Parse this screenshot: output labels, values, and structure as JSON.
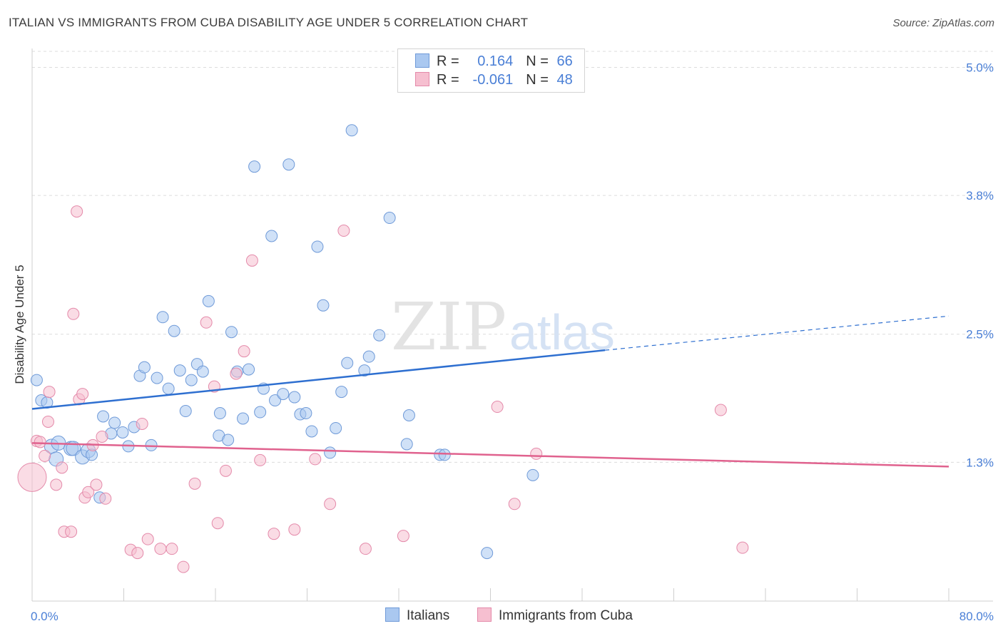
{
  "header": {
    "title": "ITALIAN VS IMMIGRANTS FROM CUBA DISABILITY AGE UNDER 5 CORRELATION CHART",
    "source": "Source: ZipAtlas.com"
  },
  "legend": {
    "rows": [
      {
        "r_label": "R =",
        "r_value": "0.164",
        "n_label": "N =",
        "n_value": "66"
      },
      {
        "r_label": "R =",
        "r_value": "-0.061",
        "n_label": "N =",
        "n_value": "48"
      }
    ]
  },
  "bottom_legend": [
    "Italians",
    "Immigrants from Cuba"
  ],
  "watermark": {
    "zip": "ZIP",
    "atlas": "atlas"
  },
  "colors": {
    "italians_fill": "#aac8f0",
    "italians_stroke": "#6f9ad8",
    "italians_line": "#2e6fd0",
    "cuba_fill": "#f6bfd0",
    "cuba_stroke": "#e48aaa",
    "cuba_line": "#e0628e",
    "tick_label": "#4a7fd6",
    "grid": "#dcdcdc"
  },
  "chart_data": {
    "type": "scatter",
    "title": "ITALIAN VS IMMIGRANTS FROM CUBA DISABILITY AGE UNDER 5 CORRELATION CHART",
    "xlabel": "",
    "ylabel": "Disability Age Under 5",
    "xlim": [
      0,
      80
    ],
    "ylim": [
      0,
      5.15
    ],
    "x_tick_labels": [
      "0.0%",
      "80.0%"
    ],
    "y_ticks": [
      1.3,
      2.5,
      3.8,
      5.0
    ],
    "y_tick_labels": [
      "1.3%",
      "2.5%",
      "3.8%",
      "5.0%"
    ],
    "grid": true,
    "legend_placement": "top-center",
    "series": [
      {
        "name": "Italians",
        "r": 0.164,
        "n": 66,
        "trend": {
          "x0": 0,
          "y0": 1.8,
          "x1": 50,
          "y1": 2.35,
          "dash_to_x": 80,
          "dash_to_y": 2.67
        },
        "points": [
          [
            0.4,
            2.07
          ],
          [
            0.8,
            1.88
          ],
          [
            1.3,
            1.86
          ],
          [
            1.7,
            1.45
          ],
          [
            2.1,
            1.33
          ],
          [
            2.3,
            1.48
          ],
          [
            3.4,
            1.43
          ],
          [
            3.6,
            1.43
          ],
          [
            4.4,
            1.35
          ],
          [
            4.9,
            1.41
          ],
          [
            5.2,
            1.37
          ],
          [
            5.9,
            0.97
          ],
          [
            6.2,
            1.73
          ],
          [
            6.9,
            1.57
          ],
          [
            7.2,
            1.67
          ],
          [
            7.9,
            1.58
          ],
          [
            8.4,
            1.45
          ],
          [
            8.9,
            1.63
          ],
          [
            9.4,
            2.11
          ],
          [
            9.8,
            2.19
          ],
          [
            10.4,
            1.46
          ],
          [
            10.9,
            2.09
          ],
          [
            11.4,
            2.66
          ],
          [
            11.9,
            1.99
          ],
          [
            12.4,
            2.53
          ],
          [
            12.9,
            2.16
          ],
          [
            13.4,
            1.78
          ],
          [
            13.9,
            2.07
          ],
          [
            14.4,
            2.22
          ],
          [
            14.9,
            2.15
          ],
          [
            15.4,
            2.81
          ],
          [
            16.3,
            1.55
          ],
          [
            16.4,
            1.76
          ],
          [
            17.1,
            1.51
          ],
          [
            17.4,
            2.52
          ],
          [
            17.9,
            2.15
          ],
          [
            18.4,
            1.71
          ],
          [
            18.9,
            2.17
          ],
          [
            19.4,
            4.07
          ],
          [
            19.9,
            1.77
          ],
          [
            20.2,
            1.99
          ],
          [
            20.9,
            3.42
          ],
          [
            21.2,
            1.88
          ],
          [
            21.9,
            1.94
          ],
          [
            22.4,
            4.09
          ],
          [
            22.9,
            1.91
          ],
          [
            23.4,
            1.75
          ],
          [
            23.9,
            1.76
          ],
          [
            24.4,
            1.59
          ],
          [
            24.9,
            3.32
          ],
          [
            25.4,
            2.77
          ],
          [
            26.0,
            1.39
          ],
          [
            26.5,
            1.62
          ],
          [
            27.0,
            1.96
          ],
          [
            27.5,
            2.23
          ],
          [
            27.9,
            4.41
          ],
          [
            29.0,
            2.16
          ],
          [
            29.4,
            2.29
          ],
          [
            30.3,
            2.49
          ],
          [
            31.2,
            3.59
          ],
          [
            32.7,
            1.47
          ],
          [
            32.9,
            1.74
          ],
          [
            35.6,
            1.37
          ],
          [
            36.0,
            1.37
          ],
          [
            39.7,
            0.45
          ],
          [
            43.7,
            1.18
          ]
        ]
      },
      {
        "name": "Immigrants from Cuba",
        "r": -0.061,
        "n": 48,
        "trend": {
          "x0": 0,
          "y0": 1.48,
          "x1": 80,
          "y1": 1.26
        },
        "points": [
          [
            0.0,
            1.16
          ],
          [
            0.4,
            1.5
          ],
          [
            0.7,
            1.49
          ],
          [
            1.1,
            1.36
          ],
          [
            1.4,
            1.68
          ],
          [
            1.5,
            1.96
          ],
          [
            2.1,
            1.09
          ],
          [
            2.6,
            1.25
          ],
          [
            2.8,
            0.65
          ],
          [
            3.4,
            0.65
          ],
          [
            3.6,
            2.69
          ],
          [
            3.9,
            3.65
          ],
          [
            4.1,
            1.89
          ],
          [
            4.4,
            1.94
          ],
          [
            4.6,
            0.97
          ],
          [
            4.9,
            1.02
          ],
          [
            5.3,
            1.46
          ],
          [
            5.6,
            1.09
          ],
          [
            6.1,
            1.54
          ],
          [
            6.4,
            0.96
          ],
          [
            8.6,
            0.48
          ],
          [
            9.2,
            0.45
          ],
          [
            9.6,
            1.66
          ],
          [
            10.1,
            0.58
          ],
          [
            11.2,
            0.49
          ],
          [
            12.2,
            0.49
          ],
          [
            13.2,
            0.32
          ],
          [
            14.2,
            1.1
          ],
          [
            15.2,
            2.61
          ],
          [
            15.9,
            2.01
          ],
          [
            16.2,
            0.73
          ],
          [
            16.9,
            1.22
          ],
          [
            17.8,
            2.13
          ],
          [
            18.5,
            2.34
          ],
          [
            19.2,
            3.19
          ],
          [
            19.9,
            1.32
          ],
          [
            21.1,
            0.63
          ],
          [
            22.9,
            0.67
          ],
          [
            24.7,
            1.33
          ],
          [
            26.0,
            0.91
          ],
          [
            27.2,
            3.47
          ],
          [
            29.1,
            0.49
          ],
          [
            32.4,
            0.61
          ],
          [
            40.6,
            1.82
          ],
          [
            42.1,
            0.91
          ],
          [
            44.0,
            1.38
          ],
          [
            60.1,
            1.79
          ],
          [
            62.0,
            0.5
          ]
        ]
      }
    ]
  }
}
